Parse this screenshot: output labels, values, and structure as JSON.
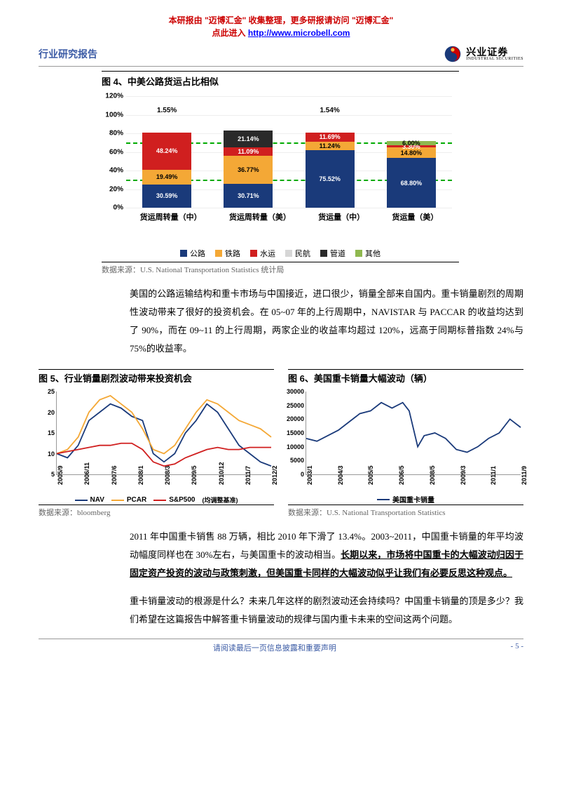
{
  "banner": {
    "line1": "本研报由 \"迈博汇金\" 收集整理，更多研报请访问 \"迈博汇金\"",
    "line2_prefix": "点此进入",
    "link": "http://www.microbell.com"
  },
  "header": {
    "report_type": "行业研究报告",
    "logo_cn": "兴业证券",
    "logo_en": "INDUSTRIAL SECURITIES",
    "logo_colors": {
      "outer": "#1a3a7a",
      "mid": "#c00",
      "inner": "#f4b942"
    }
  },
  "chart4": {
    "type": "stacked-bar",
    "title": "图 4、中美公路货运占比相似",
    "ylim": [
      0,
      120
    ],
    "ytick_step": 20,
    "ytick_suffix": "%",
    "bar_max": 120,
    "dash_lines": [
      30,
      70
    ],
    "categories": [
      "货运周转量（中）",
      "货运周转量（美）",
      "货运量（中）",
      "货运量（美）"
    ],
    "series": [
      "公路",
      "铁路",
      "水运",
      "民航",
      "管道",
      "其他"
    ],
    "colors": {
      "公路": "#1a3a7a",
      "铁路": "#f4a836",
      "水运": "#d01f1f",
      "民航": "#d6d6d6",
      "管道": "#2a2a2a",
      "其他": "#8fb84f"
    },
    "top_labels": [
      "1.55%",
      "",
      "1.54%",
      ""
    ],
    "data": [
      [
        {
          "k": "公路",
          "v": 30.59,
          "t": "30.59%"
        },
        {
          "k": "铁路",
          "v": 19.49,
          "t": "19.49%"
        },
        {
          "k": "水运",
          "v": 48.24,
          "t": "48.24%"
        }
      ],
      [
        {
          "k": "公路",
          "v": 30.71,
          "t": "30.71%"
        },
        {
          "k": "铁路",
          "v": 36.77,
          "t": "36.77%"
        },
        {
          "k": "水运",
          "v": 11.09,
          "t": "11.09%"
        },
        {
          "k": "管道",
          "v": 21.14,
          "t": "21.14%"
        }
      ],
      [
        {
          "k": "公路",
          "v": 75.52,
          "t": "75.52%"
        },
        {
          "k": "铁路",
          "v": 11.24,
          "t": "11.24%"
        },
        {
          "k": "水运",
          "v": 11.69,
          "t": "11.69%"
        }
      ],
      [
        {
          "k": "公路",
          "v": 68.8,
          "t": "68.80%"
        },
        {
          "k": "铁路",
          "v": 14.8,
          "t": "14.80%"
        },
        {
          "k": "水运",
          "v": 3.3,
          "t": "3.30%"
        },
        {
          "k": "其他",
          "v": 6.0,
          "t": "6.00%"
        }
      ]
    ],
    "source": "数据来源：U.S. National Transportation Statistics  统计局"
  },
  "para1": "美国的公路运输结构和重卡市场与中国接近，进口很少，销量全部来自国内。重卡销量剧烈的周期性波动带来了很好的投资机会。在 05~07 年的上行周期中，NAVISTAR 与 PACCAR 的收益均达到了 90%，而在 09~11 的上行周期，两家企业的收益率均超过 120%，远高于同期标普指数 24%与 75%的收益率。",
  "chart5": {
    "type": "line",
    "title": "图 5、行业销量剧烈波动带来投资机会",
    "ylim": [
      5,
      25
    ],
    "yticks": [
      5,
      10,
      15,
      20,
      25
    ],
    "xticks": [
      "2005/9",
      "2006/11",
      "2007/6",
      "2008/1",
      "2008/3",
      "2009/5",
      "2010/12",
      "2011/7",
      "2012/2"
    ],
    "series": [
      {
        "name": "NAV",
        "color": "#1a3a7a",
        "dash": false,
        "pts": [
          [
            0,
            10
          ],
          [
            5,
            9
          ],
          [
            10,
            12
          ],
          [
            15,
            18
          ],
          [
            20,
            20
          ],
          [
            25,
            22
          ],
          [
            30,
            21
          ],
          [
            35,
            19
          ],
          [
            40,
            18
          ],
          [
            45,
            10
          ],
          [
            50,
            8
          ],
          [
            55,
            10
          ],
          [
            60,
            15
          ],
          [
            65,
            18
          ],
          [
            70,
            22
          ],
          [
            75,
            20
          ],
          [
            80,
            16
          ],
          [
            85,
            12
          ],
          [
            90,
            10
          ],
          [
            95,
            8
          ],
          [
            100,
            7
          ]
        ]
      },
      {
        "name": "PCAR",
        "color": "#f4a836",
        "dash": false,
        "pts": [
          [
            0,
            10
          ],
          [
            5,
            11
          ],
          [
            10,
            14
          ],
          [
            15,
            20
          ],
          [
            20,
            23
          ],
          [
            25,
            24
          ],
          [
            30,
            22
          ],
          [
            35,
            20
          ],
          [
            40,
            16
          ],
          [
            45,
            11
          ],
          [
            50,
            10
          ],
          [
            55,
            12
          ],
          [
            60,
            16
          ],
          [
            65,
            20
          ],
          [
            70,
            23
          ],
          [
            75,
            22
          ],
          [
            80,
            20
          ],
          [
            85,
            18
          ],
          [
            90,
            17
          ],
          [
            95,
            16
          ],
          [
            100,
            14
          ]
        ]
      },
      {
        "name": "S&P500",
        "color": "#d01f1f",
        "dash": false,
        "pts": [
          [
            0,
            10
          ],
          [
            5,
            10.5
          ],
          [
            10,
            11
          ],
          [
            15,
            11.5
          ],
          [
            20,
            12
          ],
          [
            25,
            12
          ],
          [
            30,
            12.5
          ],
          [
            35,
            12.5
          ],
          [
            40,
            11
          ],
          [
            45,
            8
          ],
          [
            50,
            7
          ],
          [
            55,
            7.5
          ],
          [
            60,
            9
          ],
          [
            65,
            10
          ],
          [
            70,
            11
          ],
          [
            75,
            11.5
          ],
          [
            80,
            11
          ],
          [
            85,
            11
          ],
          [
            90,
            11.5
          ],
          [
            95,
            11.5
          ],
          [
            100,
            11.5
          ]
        ]
      }
    ],
    "legend_note": "(均调整基准)",
    "source": "数据来源：bloomberg"
  },
  "chart6": {
    "type": "line",
    "title": "图 6、美国重卡销量大幅波动（辆）",
    "ylim": [
      0,
      30000
    ],
    "yticks": [
      0,
      5000,
      10000,
      15000,
      20000,
      25000,
      30000
    ],
    "xticks": [
      "2003/1",
      "2004/3",
      "2005/5",
      "2006/5",
      "2008/5",
      "2009/3",
      "2011/1",
      "2011/9"
    ],
    "series": [
      {
        "name": "美国重卡销量",
        "color": "#1a3a7a",
        "dash": false,
        "pts": [
          [
            0,
            13000
          ],
          [
            5,
            12000
          ],
          [
            10,
            14000
          ],
          [
            15,
            16000
          ],
          [
            20,
            19000
          ],
          [
            25,
            22000
          ],
          [
            30,
            23000
          ],
          [
            35,
            26000
          ],
          [
            40,
            24000
          ],
          [
            45,
            26000
          ],
          [
            48,
            23000
          ],
          [
            52,
            10000
          ],
          [
            55,
            14000
          ],
          [
            60,
            15000
          ],
          [
            65,
            13000
          ],
          [
            70,
            9000
          ],
          [
            75,
            8000
          ],
          [
            80,
            10000
          ],
          [
            85,
            13000
          ],
          [
            90,
            15000
          ],
          [
            95,
            20000
          ],
          [
            100,
            17000
          ]
        ]
      }
    ],
    "source": "数据来源：U.S. National Transportation Statistics"
  },
  "para2_pre": "2011 年中国重卡销售 88 万辆，相比 2010 年下滑了 13.4%。2003~2011，中国重卡销量的年平均波动幅度同样也在 30%左右，与美国重卡的波动相当。",
  "para2_u": "长期以来，市场将中国重卡的大幅波动归因于固定资产投资的波动与政策刺激，但美国重卡同样的大幅波动似乎让我们有必要反思这种观点。",
  "para3": "重卡销量波动的根源是什么？未来几年这样的剧烈波动还会持续吗？中国重卡销量的顶是多少？我们希望在这篇报告中解答重卡销量波动的规律与国内重卡未来的空间这两个问题。",
  "footer": {
    "text": "请阅读最后一页信息披露和重要声明",
    "page": "- 5 -"
  }
}
